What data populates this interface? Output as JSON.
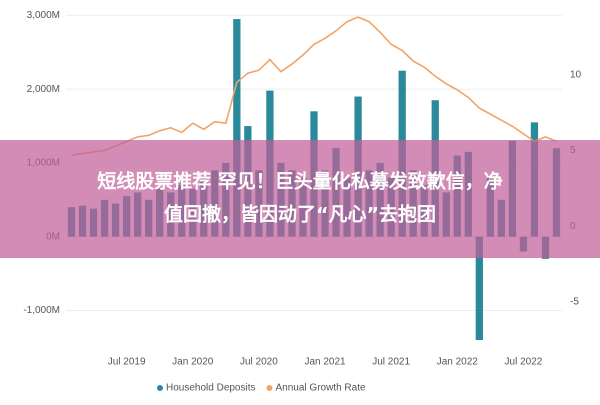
{
  "chart_data": {
    "type": "combo",
    "categories": [
      null,
      null,
      null,
      null,
      null,
      "Jul 2019",
      null,
      null,
      null,
      null,
      null,
      "Jan 2020",
      null,
      null,
      null,
      null,
      null,
      "Jul 2020",
      null,
      null,
      null,
      null,
      null,
      "Jan 2021",
      null,
      null,
      null,
      null,
      null,
      "Jul 2021",
      null,
      null,
      null,
      null,
      null,
      "Jan 2022",
      null,
      null,
      null,
      null,
      null,
      "Jul 2022",
      null,
      null,
      null
    ],
    "series": [
      {
        "name": "Household Deposits",
        "color": "#2a8a9c",
        "kind": "bar",
        "axis": "y",
        "values": [
          400,
          420,
          380,
          500,
          450,
          550,
          600,
          500,
          650,
          600,
          700,
          650,
          800,
          900,
          1000,
          2950,
          1500,
          900,
          1980,
          1000,
          900,
          800,
          1700,
          900,
          1200,
          800,
          1900,
          900,
          1000,
          800,
          2250,
          900,
          700,
          1850,
          600,
          1100,
          1150,
          -1400,
          800,
          500,
          1300,
          -200,
          1550,
          -300,
          1200
        ]
      },
      {
        "name": "Annual Growth Rate",
        "color": "#f2a466",
        "kind": "line",
        "axis": "y2",
        "values": [
          4.7,
          4.8,
          4.9,
          5.0,
          5.3,
          5.6,
          5.9,
          6.0,
          6.3,
          6.5,
          6.2,
          6.8,
          6.4,
          6.9,
          6.8,
          9.5,
          10.1,
          10.3,
          11.0,
          10.2,
          10.7,
          11.3,
          12.0,
          12.4,
          12.9,
          13.5,
          13.8,
          13.5,
          12.8,
          12.0,
          11.6,
          10.9,
          10.5,
          9.9,
          9.4,
          9.0,
          8.5,
          7.8,
          7.4,
          7.0,
          6.6,
          6.1,
          5.6,
          5.9,
          5.6
        ]
      }
    ],
    "ylim": [
      -1400,
      3100
    ],
    "yticks": [
      {
        "value": -1000,
        "label": "-1,000M"
      },
      {
        "value": 0,
        "label": "0M"
      },
      {
        "value": 1000,
        "label": "1,000M"
      },
      {
        "value": 2000,
        "label": "2,000M"
      },
      {
        "value": 3000,
        "label": "3,000M"
      }
    ],
    "y2lim": [
      -7.5,
      14.4
    ],
    "y2ticks": [
      -5,
      0,
      5,
      10
    ],
    "legend": "bottom"
  },
  "banner": {
    "lines": [
      "短线股票推荐 罕见！巨头量化私募发致歉信，净",
      "值回撤，皆因动了“凡心”去抱团"
    ]
  }
}
